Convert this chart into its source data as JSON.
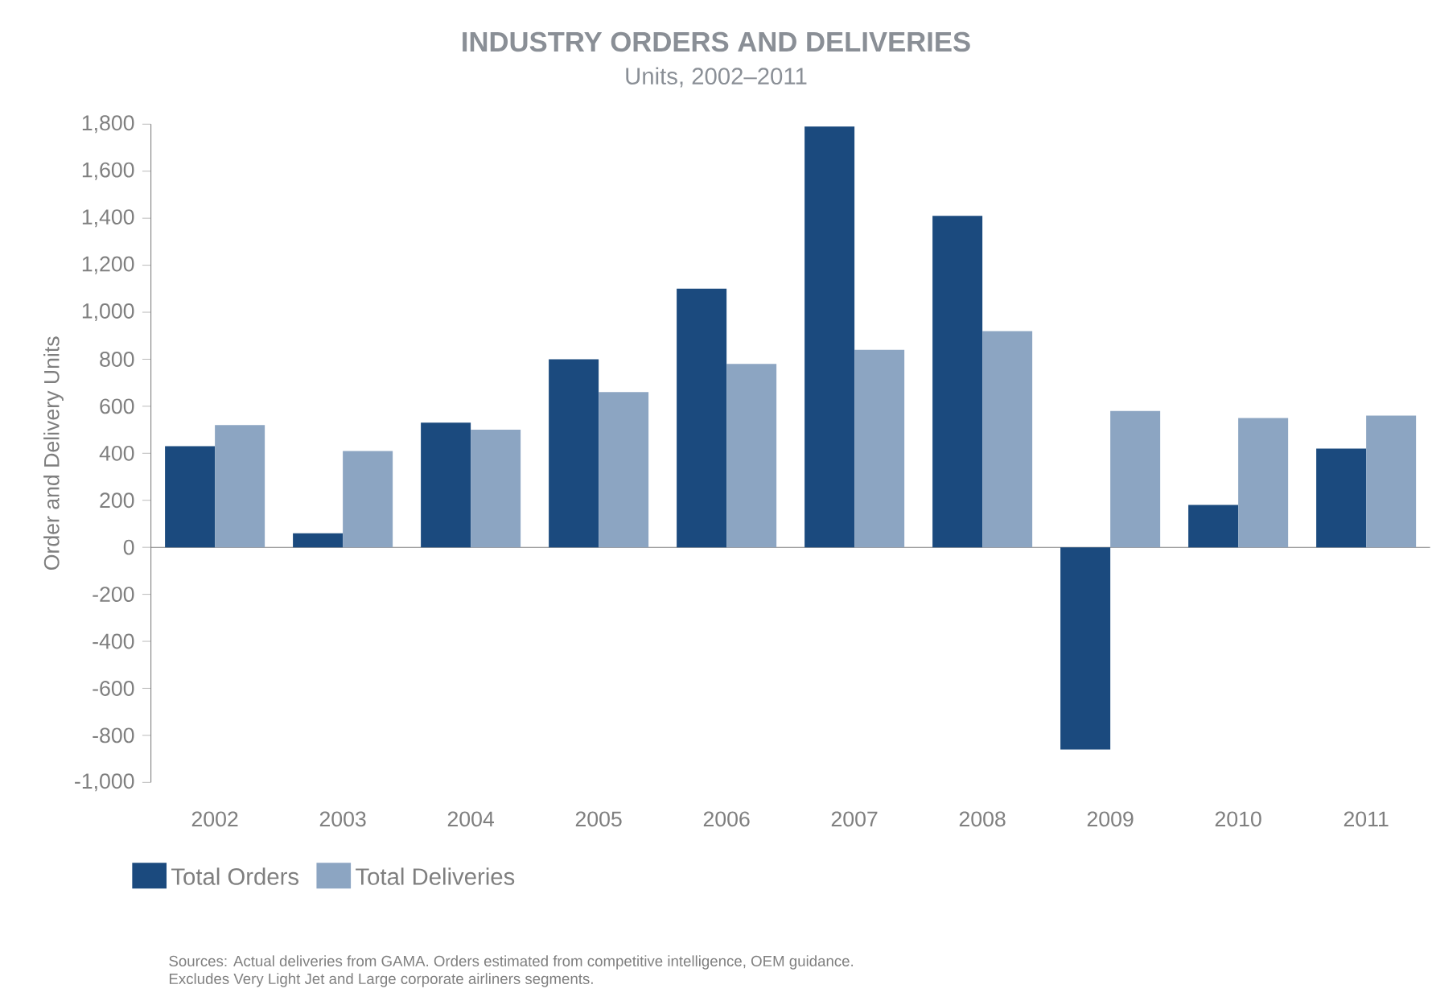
{
  "chart_data": {
    "type": "bar",
    "title": "INDUSTRY ORDERS AND DELIVERIES",
    "subtitle": "Units, 2002–2011",
    "ylabel": "Order and Delivery Units",
    "categories": [
      "2002",
      "2003",
      "2004",
      "2005",
      "2006",
      "2007",
      "2008",
      "2009",
      "2010",
      "2011"
    ],
    "series": [
      {
        "name": "Total Orders",
        "color": "#1b4a7e",
        "values": [
          430,
          60,
          530,
          800,
          1100,
          1790,
          1410,
          -860,
          180,
          420
        ]
      },
      {
        "name": "Total Deliveries",
        "color": "#8ca5c2",
        "values": [
          520,
          410,
          500,
          660,
          780,
          840,
          920,
          580,
          550,
          560
        ]
      }
    ],
    "ylim": [
      -1000,
      1800
    ],
    "yticks": [
      {
        "value": -1000,
        "label": "-1,000"
      },
      -800,
      -600,
      -400,
      -200,
      0,
      200,
      400,
      600,
      800,
      {
        "value": 1000,
        "label": "1,000"
      },
      {
        "value": 1200,
        "label": "1,200"
      },
      {
        "value": 1400,
        "label": "1,400"
      },
      {
        "value": 1600,
        "label": "1,600"
      },
      {
        "value": 1800,
        "label": "1,800"
      }
    ],
    "legend": "bottom left",
    "annotations": [
      "Sources: Actual deliveries from GAMA. Orders estimated from competitive intelligence, OEM guidance.",
      "Excludes Very Light Jet and Large corporate airliners segments."
    ]
  }
}
